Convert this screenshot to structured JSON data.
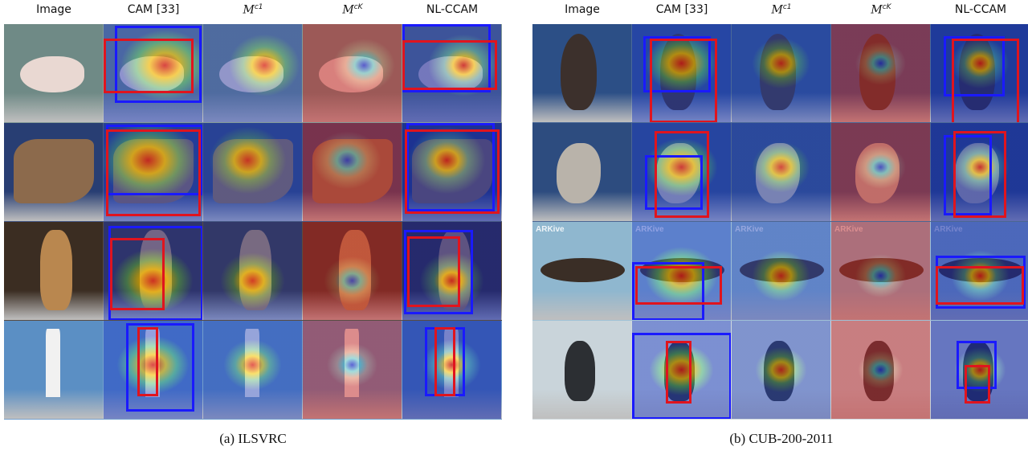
{
  "panels": [
    {
      "id": "ilsvrc",
      "caption": "(a) ILSVRC",
      "headers": [
        {
          "text": "Image"
        },
        {
          "text": "CAM [33]"
        },
        {
          "text": "M",
          "sup": "c1"
        },
        {
          "text": "M",
          "sup": "cK"
        },
        {
          "text": "NL-CCAM"
        }
      ],
      "rows": [
        {
          "subject": "axolotl",
          "bg": "#6f8a86",
          "obj": "#e9d8d2"
        },
        {
          "subject": "revolver",
          "bg": "#283e73",
          "obj": "#8c6a4c"
        },
        {
          "subject": "meerkat",
          "bg": "#3b2d22",
          "obj": "#b9874f"
        },
        {
          "subject": "lighthouse",
          "bg": "#5b8fc4",
          "obj": "#f1f1f1"
        }
      ]
    },
    {
      "id": "cub",
      "caption": "(b) CUB-200-2011",
      "headers": [
        {
          "text": "Image"
        },
        {
          "text": "CAM [33]"
        },
        {
          "text": "M",
          "sup": "c1"
        },
        {
          "text": "M",
          "sup": "cK"
        },
        {
          "text": "NL-CCAM"
        }
      ],
      "rows": [
        {
          "subject": "albatross",
          "bg": "#2c4f86",
          "obj": "#3c302c"
        },
        {
          "subject": "gull",
          "bg": "#2d4c7f",
          "obj": "#b9b3aa"
        },
        {
          "subject": "flying-bird",
          "bg": "#8fb7cf",
          "obj": "#3a2e26",
          "watermark": "ARKive"
        },
        {
          "subject": "crow",
          "bg": "#c9d4da",
          "obj": "#2c2f33"
        }
      ]
    }
  ]
}
